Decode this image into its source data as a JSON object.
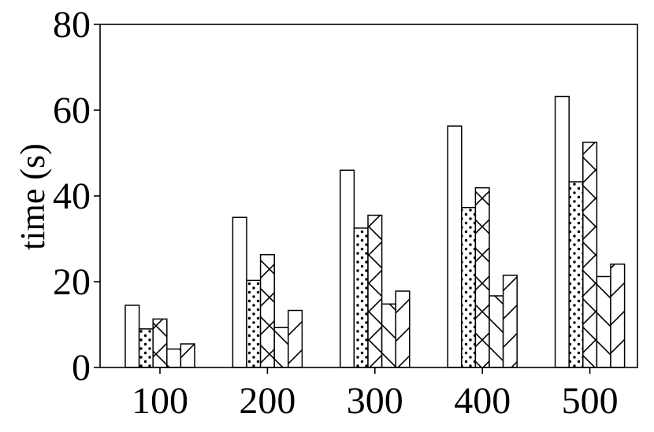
{
  "chart_data": {
    "type": "bar",
    "title": "",
    "xlabel": "",
    "ylabel": "time (s)",
    "ylim": [
      0,
      80
    ],
    "yticks": [
      0,
      20,
      40,
      60,
      80
    ],
    "categories": [
      "100",
      "200",
      "300",
      "400",
      "500"
    ],
    "grid": false,
    "legend": "none",
    "series": [
      {
        "hatch": "none",
        "values": [
          14.5,
          35.0,
          46.0,
          56.3,
          63.2
        ]
      },
      {
        "hatch": "dots",
        "values": [
          9.0,
          20.3,
          32.5,
          37.3,
          43.3
        ]
      },
      {
        "hatch": "cross",
        "values": [
          11.3,
          26.3,
          35.5,
          41.9,
          52.5
        ]
      },
      {
        "hatch": "backslash",
        "values": [
          4.3,
          9.3,
          14.8,
          16.7,
          21.2
        ]
      },
      {
        "hatch": "forwardslash",
        "values": [
          5.5,
          13.3,
          17.8,
          21.5,
          24.1
        ]
      }
    ]
  }
}
